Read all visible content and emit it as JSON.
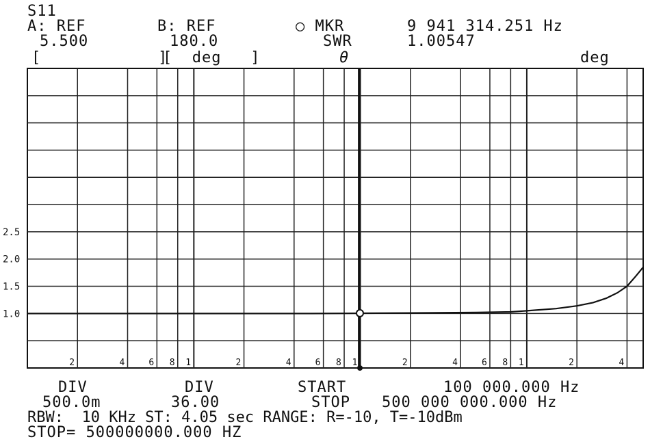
{
  "header": {
    "param": "S11",
    "a_label": "A: REF",
    "a_value": "5.500",
    "a_unit": "[            ]",
    "b_label": "B: REF",
    "b_value": "180.0",
    "b_unit": "[  deg   ]",
    "mkr_label": "○ MKR",
    "swr_label": "SWR",
    "theta_label": "θ",
    "mkr_freq": "9 941 314.251 Hz",
    "swr_value": "1.00547",
    "right_unit": "deg"
  },
  "footer": {
    "div_a_label": "DIV",
    "div_a_value": "500.0m",
    "div_b_label": "DIV",
    "div_b_value": "36.00",
    "start_label": "START",
    "start_value": "100 000.000 Hz",
    "stop_label": "STOP",
    "stop_value": "500 000 000.000 Hz",
    "line3": "RBW:  10 KHz ST: 4.05 sec RANGE: R=-10, T=-10dBm",
    "line4": "STOP= 500000000.000 HZ"
  },
  "chart_data": {
    "type": "line",
    "x_scale": "log",
    "xlim": [
      100000,
      500000000
    ],
    "ylim": [
      0,
      5.5
    ],
    "y_ticks": [
      1.0,
      1.5,
      2.0,
      2.5
    ],
    "y_tick_labels": [
      "1.0",
      "1.5",
      "2.0",
      "2.5"
    ],
    "x_tick_labels": [
      "2",
      "4",
      "6",
      "8",
      "1",
      "2",
      "4",
      "6",
      "8",
      "1",
      "2",
      "4",
      "6",
      "8",
      "1",
      "2",
      "4"
    ],
    "x_tick_values": [
      200000,
      400000,
      600000,
      800000,
      1000000,
      2000000,
      4000000,
      6000000,
      8000000,
      10000000,
      20000000,
      40000000,
      60000000,
      80000000,
      100000000,
      200000000,
      400000000
    ],
    "marker": {
      "x": 9941314.251,
      "y": 1.00547
    },
    "series": [
      {
        "x": [
          100000,
          1000000,
          5000000,
          9941314,
          20000000,
          50000000,
          80000000,
          100000000,
          150000000,
          200000000,
          250000000,
          300000000,
          350000000,
          400000000,
          450000000,
          500000000
        ],
        "y": [
          1.0,
          1.0,
          1.0,
          1.005,
          1.01,
          1.02,
          1.03,
          1.05,
          1.09,
          1.14,
          1.2,
          1.28,
          1.38,
          1.5,
          1.68,
          1.85
        ]
      }
    ]
  }
}
